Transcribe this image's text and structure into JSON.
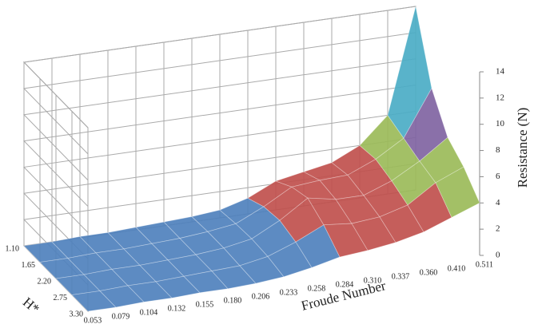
{
  "chart_data": {
    "type": "surface",
    "x_label": "Froude Number",
    "depth_label": "H*",
    "z_label": "Resistance (N)",
    "x_categories": [
      "0.053",
      "0.079",
      "0.104",
      "0.132",
      "0.155",
      "0.180",
      "0.206",
      "0.233",
      "0.258",
      "0.284",
      "0.310",
      "0.337",
      "0.360",
      "0.410",
      "0.511"
    ],
    "depth_categories": [
      "1.10",
      "1.65",
      "2.20",
      "2.75",
      "3.30"
    ],
    "values": [
      [
        0,
        0,
        0.1,
        0.1,
        0.2,
        0.3,
        0.4,
        0.6,
        1.2,
        2.2,
        2.6,
        3.0,
        4.0,
        6.0,
        14
      ],
      [
        0,
        0,
        0.1,
        0.1,
        0.2,
        0.3,
        0.5,
        0.8,
        1.8,
        3.0,
        3.2,
        3.3,
        4.2,
        5.5,
        9
      ],
      [
        0,
        0,
        0.1,
        0.1,
        0.2,
        0.3,
        0.5,
        0.9,
        2.0,
        3.4,
        3.0,
        3.0,
        3.8,
        5.0,
        6.5
      ],
      [
        0,
        0,
        0.1,
        0.1,
        0.2,
        0.3,
        0.4,
        0.8,
        1.6,
        2.6,
        2.4,
        2.6,
        3.2,
        4.6,
        5.5
      ],
      [
        0,
        0,
        0.1,
        0.1,
        0.2,
        0.2,
        0.3,
        0.5,
        0.9,
        1.4,
        1.6,
        1.9,
        2.4,
        3.2,
        4.0
      ]
    ],
    "zlim": [
      0,
      14
    ],
    "zticks": [
      0,
      2,
      4,
      6,
      8,
      10,
      12,
      14
    ],
    "band_colors": [
      "#4f81bd",
      "#c0504d",
      "#9bbb59",
      "#8064a2",
      "#4bacc6",
      "#f79646",
      "#c0702a"
    ],
    "grid": true
  }
}
